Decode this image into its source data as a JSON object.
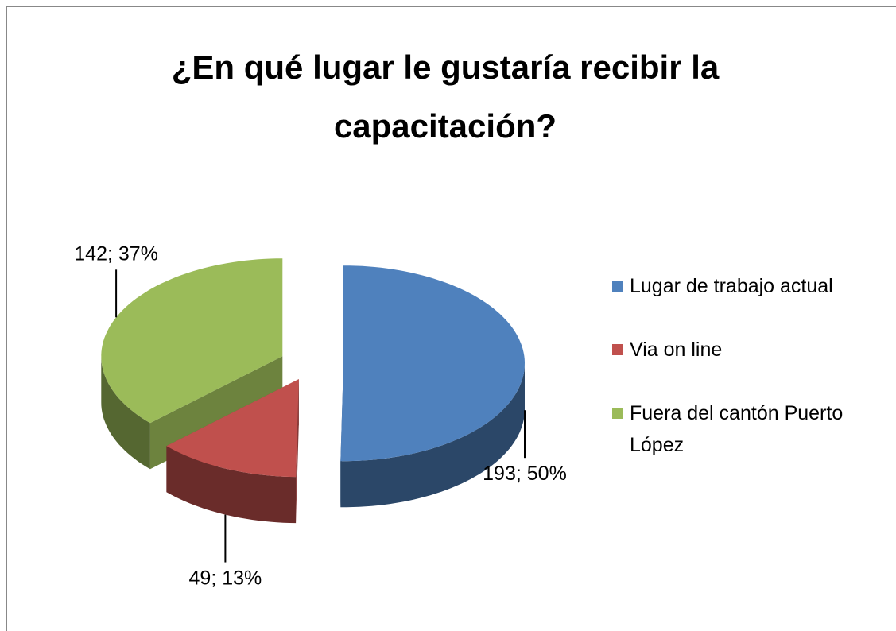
{
  "chart_data": {
    "type": "pie",
    "title": "¿En qué lugar le gustaría recibir la capacitación?",
    "categories": [
      "Lugar de trabajo actual",
      "Via on line",
      "Fuera del cantón Puerto López"
    ],
    "values": [
      193,
      49,
      142
    ],
    "value_labels": [
      "193; 50%",
      "49; 13%",
      "142; 37%"
    ],
    "colors": [
      "#4f81bd",
      "#c0504d",
      "#9bbb59"
    ],
    "legend": "right"
  }
}
